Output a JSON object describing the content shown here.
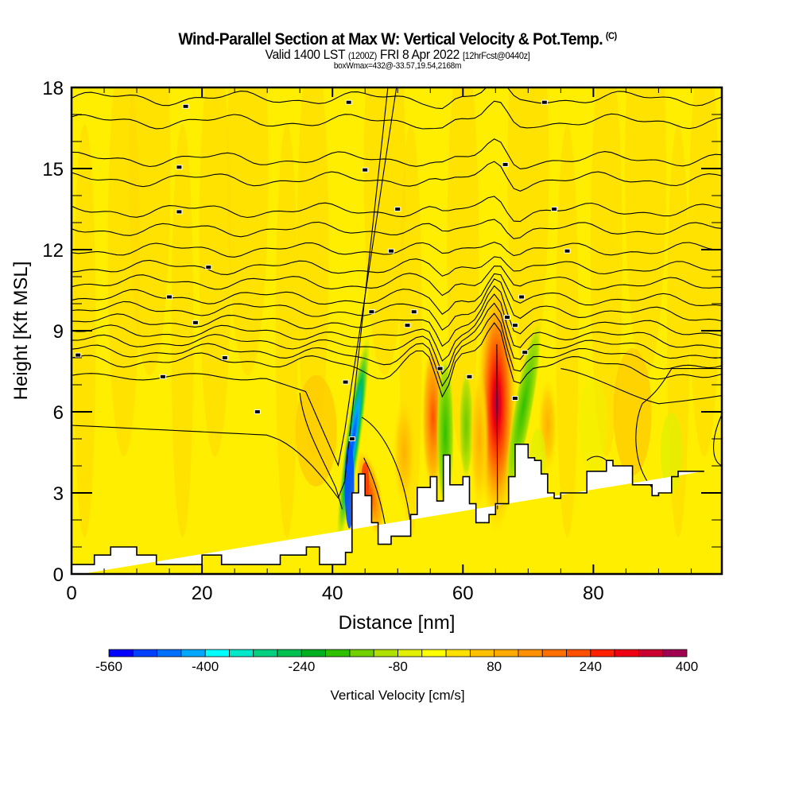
{
  "title": {
    "main": "Wind-Parallel Section at Max W: Vertical Velocity & Pot.Temp.",
    "copyright": "(C)",
    "valid_prefix": "Valid 1400 LST",
    "valid_utc": "(1200Z)",
    "valid_date": "FRI 8 Apr 2022",
    "forecast": "[12hrFcst@0440z]",
    "box_info": "boxWmax=432@-33.57,19.54,2168m"
  },
  "chart_data": {
    "type": "heatmap",
    "title": "Wind-Parallel Section at Max W: Vertical Velocity & Pot.Temp.",
    "xlabel": "Distance [nm]",
    "ylabel": "Height [Kft MSL]",
    "xlim": [
      0,
      99.7
    ],
    "ylim": [
      0,
      18
    ],
    "x_ticks": [
      0,
      20,
      40,
      60,
      80
    ],
    "x_tick_labels": [
      "0",
      "20",
      "40",
      "60",
      "80"
    ],
    "y_ticks": [
      0,
      3,
      6,
      9,
      12,
      15,
      18
    ],
    "y_tick_labels": [
      "0",
      "3",
      "6",
      "9",
      "12",
      "15",
      "18"
    ],
    "x_minor_step": 5,
    "y_minor_step": 1,
    "grid": false,
    "colorbar": {
      "title": "Vertical Velocity [cm/s]",
      "placement": "bottom",
      "tick_labels": [
        "-560",
        "-400",
        "-240",
        "-80",
        "80",
        "240",
        "400"
      ],
      "colors": [
        "#0000ff",
        "#0040ff",
        "#0070ff",
        "#00a8ff",
        "#00ffff",
        "#00e8c8",
        "#00d080",
        "#00c050",
        "#00b020",
        "#30c000",
        "#70d000",
        "#b0e000",
        "#e0f000",
        "#ffff00",
        "#ffe000",
        "#ffc000",
        "#ffaa00",
        "#ff9000",
        "#ff7000",
        "#ff5000",
        "#ff2000",
        "#ee0010",
        "#cc0030",
        "#a00050"
      ]
    },
    "terrain_kft": {
      "x_nm": [
        0,
        3.5,
        3.5,
        6,
        6,
        10,
        10,
        13,
        13,
        20,
        20,
        23,
        23,
        32,
        32,
        36,
        36,
        38,
        38,
        42,
        42,
        43,
        43,
        44,
        44,
        45,
        45,
        46,
        46,
        47,
        47,
        49,
        49,
        52,
        52,
        53,
        53,
        55,
        55,
        56,
        56,
        57,
        57,
        58,
        58,
        60,
        60,
        61,
        61,
        62,
        62,
        64,
        64,
        65,
        65,
        67,
        67,
        68,
        68,
        70,
        70,
        71,
        71,
        72,
        72,
        73,
        73,
        74,
        74,
        75,
        75,
        79,
        79,
        82,
        82,
        83,
        83,
        86,
        86,
        89,
        89,
        90,
        90,
        92,
        92,
        93,
        93,
        97,
        97,
        99.7
      ],
      "height": [
        0.35,
        0.35,
        0.7,
        0.7,
        1,
        1,
        0.7,
        0.7,
        0.35,
        0.35,
        0.7,
        0.7,
        0.35,
        0.35,
        0.7,
        0.7,
        1,
        1,
        0.35,
        0.35,
        0.8,
        0.8,
        3,
        3,
        3.7,
        3.7,
        2.9,
        2.9,
        1.9,
        1.9,
        1.1,
        1.1,
        1.4,
        1.4,
        2.2,
        2.2,
        3.2,
        3.2,
        3.6,
        3.6,
        2.7,
        2.7,
        4.4,
        4.4,
        3.3,
        3.3,
        3.6,
        3.6,
        2.6,
        2.6,
        1.9,
        1.9,
        2.2,
        2.2,
        2.6,
        2.6,
        3.6,
        3.6,
        4.8,
        4.8,
        4.3,
        4.3,
        4.2,
        4.2,
        3.7,
        3.7,
        3,
        3,
        2.8,
        2.8,
        3,
        3,
        3.8,
        3.8,
        4.2,
        4.2,
        4.0,
        4.0,
        3.3,
        3.3,
        2.9,
        2.9,
        3.0,
        3.0,
        3.6,
        3.6,
        3.8,
        3.8
      ]
    },
    "vertical_velocity_features": [
      {
        "name": "downdraft",
        "x_nm": 43,
        "z_kft": 4.5,
        "value_cms": -500
      },
      {
        "name": "updraft-lee",
        "x_nm": 45.5,
        "z_kft": 3.0,
        "value_cms": 240
      },
      {
        "name": "updraft-56",
        "x_nm": 55.5,
        "z_kft": 6.0,
        "value_cms": 200
      },
      {
        "name": "updraft-main",
        "x_nm": 65,
        "z_kft": 6.5,
        "value_cms": 432
      },
      {
        "name": "downdraft-58",
        "x_nm": 58.5,
        "z_kft": 5.5,
        "value_cms": -200
      },
      {
        "name": "downdraft-70",
        "x_nm": 69,
        "z_kft": 6.0,
        "value_cms": -160
      }
    ]
  }
}
